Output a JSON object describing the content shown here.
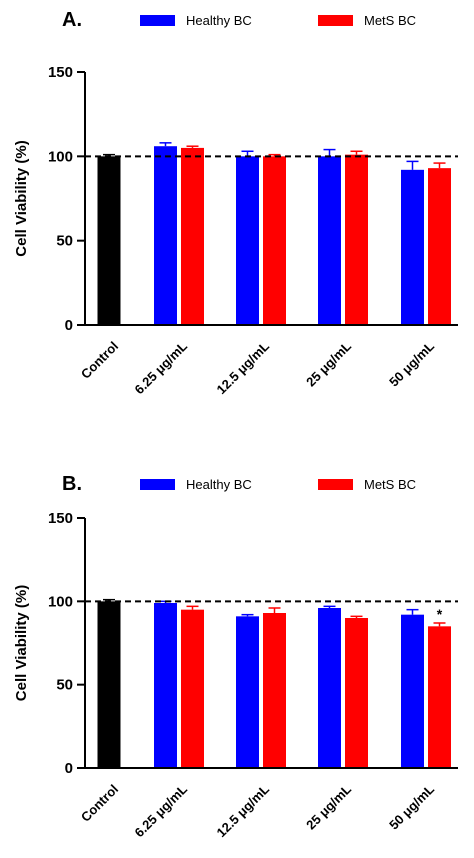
{
  "chart_data": [
    {
      "type": "bar",
      "title": "A.",
      "ylabel": "Cell Viability (%)",
      "categories": [
        "Control",
        "6.25 μg/mL",
        "12.5 μg/mL",
        "25 μg/mL",
        "50 μg/mL"
      ],
      "control_value": 100,
      "control_error": 1,
      "control_color": "#000000",
      "series": [
        {
          "name": "Healthy BC",
          "color": "#0000ff",
          "values": [
            null,
            106,
            100,
            100,
            92
          ],
          "errors": [
            null,
            2,
            3,
            4,
            5
          ]
        },
        {
          "name": "MetS BC",
          "color": "#ff0000",
          "values": [
            null,
            105,
            100,
            101,
            93
          ],
          "errors": [
            null,
            1,
            1,
            2,
            3
          ]
        }
      ],
      "ylim": [
        0,
        150
      ],
      "yticks": [
        0,
        50,
        100,
        150
      ],
      "reference_line": 100,
      "legend": "top"
    },
    {
      "type": "bar",
      "title": "B.",
      "ylabel": "Cell Viability (%)",
      "categories": [
        "Control",
        "6.25 μg/mL",
        "12.5 μg/mL",
        "25 μg/mL",
        "50 μg/mL"
      ],
      "control_value": 100,
      "control_error": 1,
      "control_color": "#000000",
      "series": [
        {
          "name": "Healthy BC",
          "color": "#0000ff",
          "values": [
            null,
            99,
            91,
            96,
            92
          ],
          "errors": [
            null,
            1,
            1,
            1,
            3
          ]
        },
        {
          "name": "MetS BC",
          "color": "#ff0000",
          "values": [
            null,
            95,
            93,
            90,
            85
          ],
          "errors": [
            null,
            2,
            3,
            1,
            2
          ]
        }
      ],
      "annotations": [
        {
          "text": "*",
          "series": 1,
          "index": 4
        }
      ],
      "ylim": [
        0,
        150
      ],
      "yticks": [
        0,
        50,
        100,
        150
      ],
      "reference_line": 100,
      "legend": "top"
    }
  ]
}
